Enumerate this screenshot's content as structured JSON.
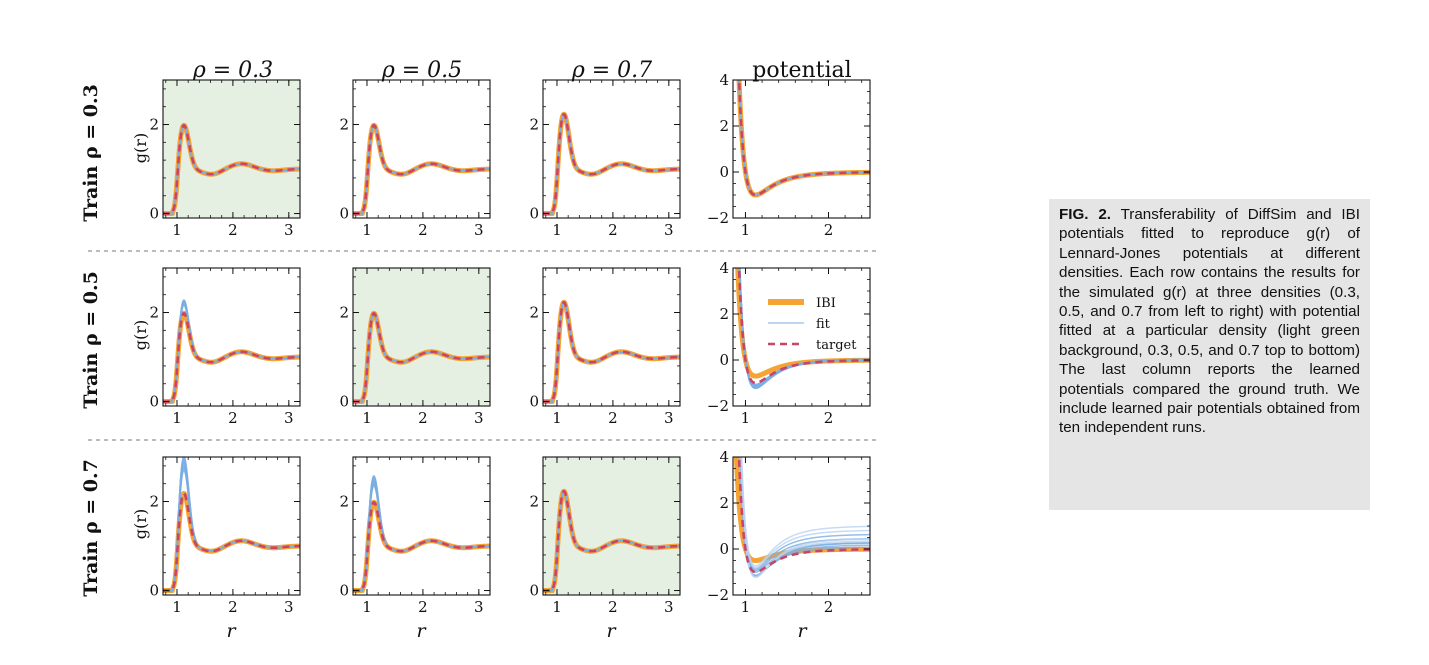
{
  "figure": {
    "column_titles": [
      "ρ = 0.3",
      "ρ = 0.5",
      "ρ = 0.7",
      "potential"
    ],
    "row_labels": [
      "Train ρ = 0.3",
      "Train ρ = 0.5",
      "Train ρ = 0.7"
    ],
    "gr_ylabel": "g(r)",
    "xlabel": "r",
    "legend": [
      "IBI",
      "fit",
      "target"
    ],
    "colors": {
      "ibi": "#f5a332",
      "fit": "#7aaee3",
      "target": "#c8456a",
      "training_background": "#e6f0e2",
      "divider": "#777777"
    }
  },
  "chart_data": {
    "type": "line",
    "layout": "3x4 grid of line plots",
    "rows": [
      {
        "train_density": 0.3,
        "panels": [
          {
            "kind": "g(r)",
            "density": 0.3,
            "training": true,
            "xlim": [
              0.75,
              3.2
            ],
            "ylim": [
              -0.1,
              3.0
            ],
            "xticks": [
              1,
              2,
              3
            ],
            "yticks": [
              0,
              2
            ],
            "fit_peak": 2.0,
            "target_peak": 2.0
          },
          {
            "kind": "g(r)",
            "density": 0.5,
            "training": false,
            "xlim": [
              0.75,
              3.2
            ],
            "ylim": [
              -0.1,
              3.0
            ],
            "xticks": [
              1,
              2,
              3
            ],
            "yticks": [
              0,
              2
            ],
            "fit_peak": 2.0,
            "target_peak": 2.0
          },
          {
            "kind": "g(r)",
            "density": 0.7,
            "training": false,
            "xlim": [
              0.75,
              3.2
            ],
            "ylim": [
              -0.1,
              3.0
            ],
            "xticks": [
              1,
              2,
              3
            ],
            "yticks": [
              0,
              2
            ],
            "fit_peak": 2.25,
            "target_peak": 2.25
          },
          {
            "kind": "potential",
            "xlim": [
              0.85,
              2.5
            ],
            "ylim": [
              -2,
              4
            ],
            "xticks": [
              1,
              2
            ],
            "yticks": [
              -2,
              0,
              2,
              4
            ],
            "ibi_min": -1.0,
            "fit_min": -1.0,
            "target_min": -1.0
          }
        ]
      },
      {
        "train_density": 0.5,
        "panels": [
          {
            "kind": "g(r)",
            "density": 0.3,
            "training": false,
            "xlim": [
              0.75,
              3.2
            ],
            "ylim": [
              -0.1,
              3.0
            ],
            "xticks": [
              1,
              2,
              3
            ],
            "yticks": [
              0,
              2
            ],
            "fit_peak": 2.25,
            "target_peak": 2.0
          },
          {
            "kind": "g(r)",
            "density": 0.5,
            "training": true,
            "xlim": [
              0.75,
              3.2
            ],
            "ylim": [
              -0.1,
              3.0
            ],
            "xticks": [
              1,
              2,
              3
            ],
            "yticks": [
              0,
              2
            ],
            "fit_peak": 2.0,
            "target_peak": 2.0
          },
          {
            "kind": "g(r)",
            "density": 0.7,
            "training": false,
            "xlim": [
              0.75,
              3.2
            ],
            "ylim": [
              -0.1,
              3.0
            ],
            "xticks": [
              1,
              2,
              3
            ],
            "yticks": [
              0,
              2
            ],
            "fit_peak": 2.25,
            "target_peak": 2.25
          },
          {
            "kind": "potential",
            "xlim": [
              0.85,
              2.5
            ],
            "ylim": [
              -2,
              4
            ],
            "xticks": [
              1,
              2
            ],
            "yticks": [
              -2,
              0,
              2,
              4
            ],
            "ibi_min": -0.7,
            "fit_min": -1.3,
            "target_min": -1.0
          }
        ]
      },
      {
        "train_density": 0.7,
        "panels": [
          {
            "kind": "g(r)",
            "density": 0.3,
            "training": false,
            "xlim": [
              0.75,
              3.2
            ],
            "ylim": [
              -0.1,
              3.0
            ],
            "xticks": [
              1,
              2,
              3
            ],
            "yticks": [
              0,
              2
            ],
            "fit_peak": 2.9,
            "target_peak": 2.2
          },
          {
            "kind": "g(r)",
            "density": 0.5,
            "training": false,
            "xlim": [
              0.75,
              3.2
            ],
            "ylim": [
              -0.1,
              3.0
            ],
            "xticks": [
              1,
              2,
              3
            ],
            "yticks": [
              0,
              2
            ],
            "fit_peak": 2.5,
            "target_peak": 2.0
          },
          {
            "kind": "g(r)",
            "density": 0.7,
            "training": true,
            "xlim": [
              0.75,
              3.2
            ],
            "ylim": [
              -0.1,
              3.0
            ],
            "xticks": [
              1,
              2,
              3
            ],
            "yticks": [
              0,
              2
            ],
            "fit_peak": 2.25,
            "target_peak": 2.25
          },
          {
            "kind": "potential",
            "xlim": [
              0.85,
              2.5
            ],
            "ylim": [
              -2,
              4
            ],
            "xticks": [
              1,
              2
            ],
            "yticks": [
              -2,
              0,
              2,
              4
            ],
            "ibi_min": -0.5,
            "fit_min": -1.8,
            "target_min": -1.0
          }
        ]
      }
    ]
  },
  "caption": {
    "label": "FIG. 2.",
    "text": "Transferability of DiffSim and IBI potentials fitted to reproduce g(r) of Lennard-Jones potentials at different densities. Each row contains the results for the simulated g(r) at three densities (0.3, 0.5, and 0.7 from left to right) with potential fitted at a particular density (light green background, 0.3, 0.5, and 0.7 top to bottom) The last column reports the learned potentials compared the ground truth. We include learned pair potentials obtained from ten independent runs."
  }
}
